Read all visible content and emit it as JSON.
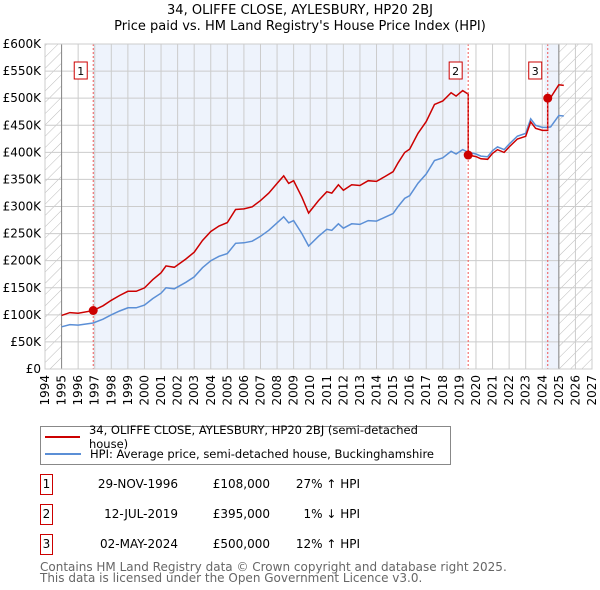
{
  "chart_data": {
    "type": "line",
    "title": "34, OLIFFE CLOSE, AYLESBURY, HP20 2BJ",
    "subtitle": "Price paid vs. HM Land Registry's House Price Index (HPI)",
    "xlim": [
      1994,
      2027
    ],
    "ylim": [
      0,
      600000
    ],
    "x_ticks": [
      1994,
      1995,
      1996,
      1997,
      1998,
      1999,
      2000,
      2001,
      2002,
      2003,
      2004,
      2005,
      2006,
      2007,
      2008,
      2009,
      2010,
      2011,
      2012,
      2013,
      2014,
      2015,
      2016,
      2017,
      2018,
      2019,
      2020,
      2021,
      2022,
      2023,
      2024,
      2025,
      2026,
      2027
    ],
    "y_ticks": [
      {
        "v": 0,
        "label": "£0"
      },
      {
        "v": 50000,
        "label": "£50K"
      },
      {
        "v": 100000,
        "label": "£100K"
      },
      {
        "v": 150000,
        "label": "£150K"
      },
      {
        "v": 200000,
        "label": "£200K"
      },
      {
        "v": 250000,
        "label": "£250K"
      },
      {
        "v": 300000,
        "label": "£300K"
      },
      {
        "v": 350000,
        "label": "£350K"
      },
      {
        "v": 400000,
        "label": "£400K"
      },
      {
        "v": 450000,
        "label": "£450K"
      },
      {
        "v": 500000,
        "label": "£500K"
      },
      {
        "v": 550000,
        "label": "£550K"
      },
      {
        "v": 600000,
        "label": "£600K"
      }
    ],
    "grid": true,
    "data_range": [
      1995,
      2025.3
    ],
    "colors": {
      "property": "#cc0000",
      "hpi": "#5b8fd6",
      "shade": "#eef3fc"
    },
    "series": [
      {
        "name": "34, OLIFFE CLOSE, AYLESBURY, HP20 2BJ (semi-detached house)",
        "derived": "hpi scaled to last sale"
      },
      {
        "name": "HPI: Average price, semi-detached house, Buckinghamshire",
        "x": [
          1995,
          1995.5,
          1996,
          1996.9,
          1997.5,
          1998,
          1998.5,
          1999,
          1999.5,
          2000,
          2000.5,
          2001,
          2001.3,
          2001.8,
          2002.5,
          2003,
          2003.5,
          2004,
          2004.5,
          2005,
          2005.5,
          2006,
          2006.5,
          2007,
          2007.5,
          2008,
          2008.4,
          2008.7,
          2009,
          2009.5,
          2009.9,
          2010.5,
          2011,
          2011.3,
          2011.7,
          2012,
          2012.5,
          2013,
          2013.5,
          2014,
          2014.5,
          2015,
          2015.3,
          2015.7,
          2016,
          2016.5,
          2017,
          2017.5,
          2018,
          2018.5,
          2018.8,
          2019.2,
          2019.53,
          2020,
          2020.3,
          2020.7,
          2021,
          2021.3,
          2021.7,
          2022,
          2022.5,
          2023,
          2023.3,
          2023.6,
          2024,
          2024.33,
          2024.5,
          2025,
          2025.3
        ],
        "y": [
          78000,
          82000,
          81000,
          85000,
          92000,
          100000,
          107000,
          113000,
          113000,
          118000,
          130000,
          140000,
          150000,
          148000,
          160000,
          170000,
          187000,
          200000,
          208000,
          213000,
          232000,
          233000,
          236000,
          245000,
          256000,
          270000,
          281000,
          270000,
          274000,
          250000,
          227000,
          245000,
          258000,
          256000,
          268000,
          260000,
          268000,
          267000,
          274000,
          273000,
          280000,
          287000,
          300000,
          315000,
          320000,
          343000,
          360000,
          385000,
          390000,
          402000,
          397000,
          405000,
          400000,
          397000,
          393000,
          392000,
          403000,
          410000,
          405000,
          415000,
          430000,
          435000,
          462000,
          450000,
          446000,
          446000,
          447000,
          468000,
          467000
        ]
      }
    ],
    "sales": [
      {
        "n": "1",
        "x": 1996.91,
        "price": 108000,
        "date": "29-NOV-1996",
        "price_label": "£108,000",
        "hpi_label": "27% ↑ HPI"
      },
      {
        "n": "2",
        "x": 2019.53,
        "price": 395000,
        "date": "12-JUL-2019",
        "price_label": "£395,000",
        "hpi_label": "1% ↓ HPI"
      },
      {
        "n": "3",
        "x": 2024.33,
        "price": 500000,
        "date": "02-MAY-2024",
        "price_label": "£500,000",
        "hpi_label": "12% ↑ HPI"
      }
    ]
  },
  "legend": {
    "property": "34, OLIFFE CLOSE, AYLESBURY, HP20 2BJ (semi-detached house)",
    "hpi": "HPI: Average price, semi-detached house, Buckinghamshire"
  },
  "footer": {
    "line1": "Contains HM Land Registry data © Crown copyright and database right 2025.",
    "line2": "This data is licensed under the Open Government Licence v3.0."
  }
}
